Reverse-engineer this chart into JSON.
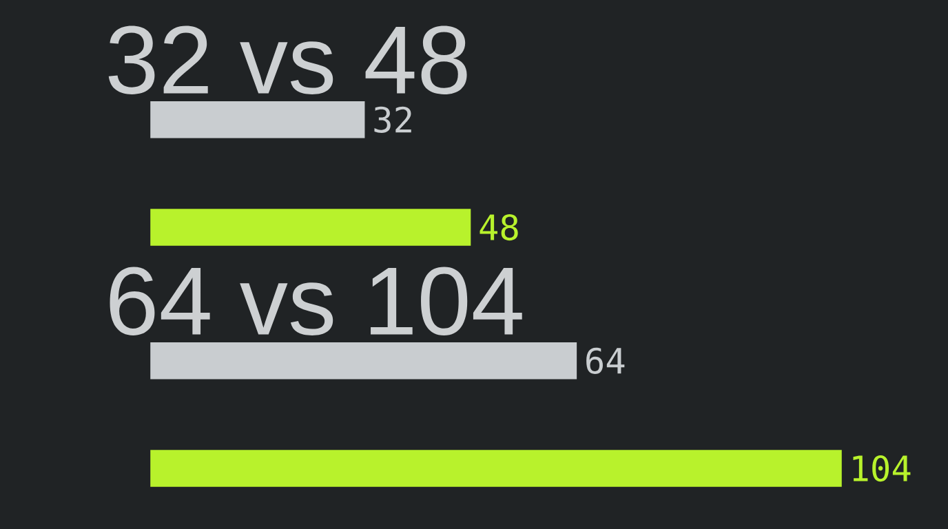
{
  "chart_data": [
    {
      "type": "bar",
      "orientation": "horizontal",
      "title": "32 vs 48",
      "categories": [
        null,
        null
      ],
      "values": [
        32,
        48
      ],
      "colors": [
        "#c9cdd0",
        "#b8f22c"
      ],
      "data_labels": true
    },
    {
      "type": "bar",
      "orientation": "horizontal",
      "title": "64 vs 104",
      "categories": [
        null,
        null
      ],
      "values": [
        64,
        104
      ],
      "colors": [
        "#c9cdd0",
        "#b8f22c"
      ],
      "data_labels": true
    }
  ]
}
